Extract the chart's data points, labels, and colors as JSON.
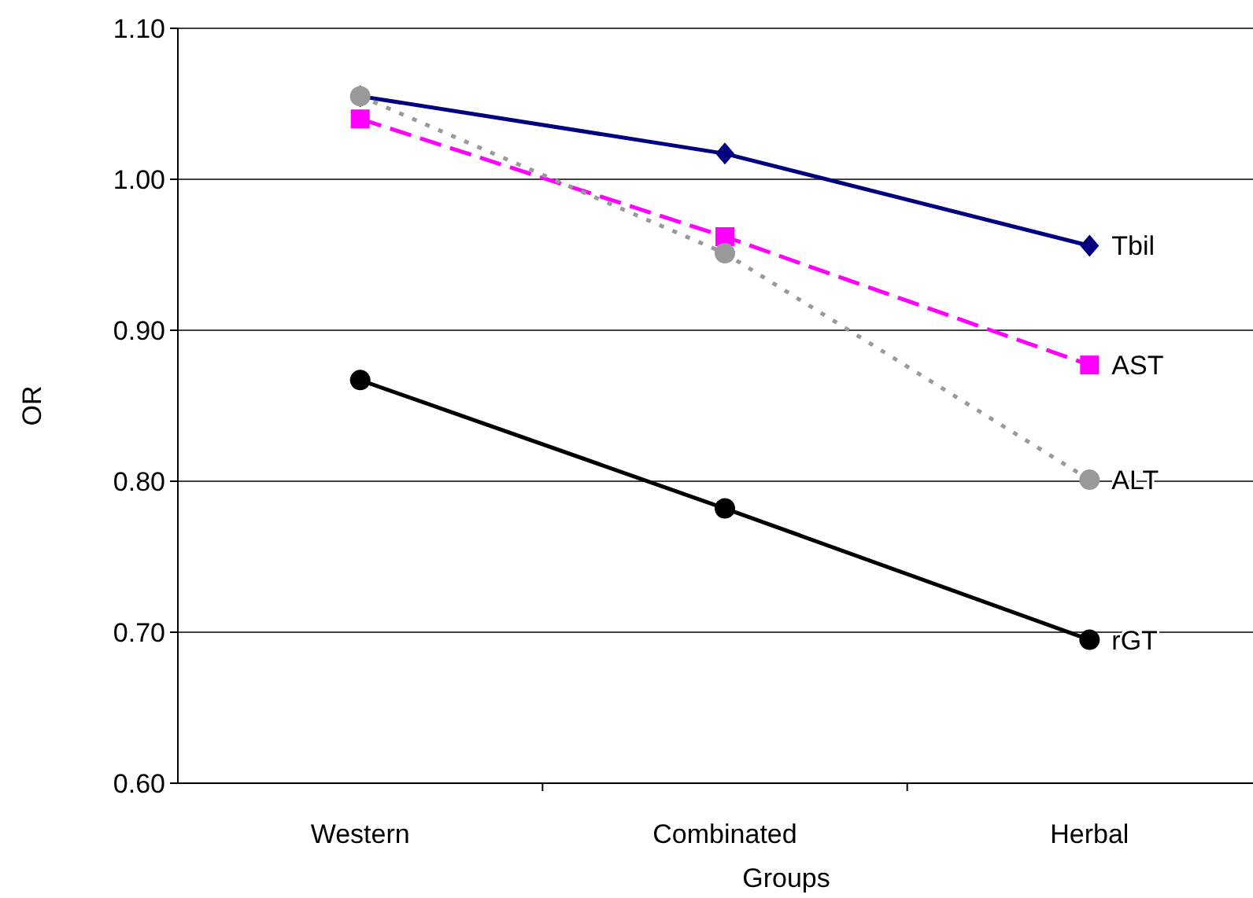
{
  "chart_data": {
    "type": "line",
    "xlabel": "Groups",
    "ylabel": "OR",
    "categories": [
      "Western",
      "Combinated",
      "Herbal"
    ],
    "ylim": [
      0.6,
      1.1
    ],
    "yticks": [
      {
        "value": 0.6,
        "label": "0.60"
      },
      {
        "value": 0.7,
        "label": "0.70"
      },
      {
        "value": 0.8,
        "label": "0.80"
      },
      {
        "value": 0.9,
        "label": "0.90"
      },
      {
        "value": 1.0,
        "label": "1.00"
      },
      {
        "value": 1.1,
        "label": "1.10"
      }
    ],
    "grid": "y",
    "series": [
      {
        "name": "Tbil",
        "color": "#000080",
        "values": [
          1.055,
          1.017,
          0.956
        ],
        "marker": "diamond",
        "line_style": "solid"
      },
      {
        "name": "AST",
        "color": "#ff00ff",
        "values": [
          1.04,
          0.962,
          0.877
        ],
        "marker": "square",
        "line_style": "dashed"
      },
      {
        "name": "ALT",
        "color": "#999999",
        "values": [
          1.055,
          0.951,
          0.801
        ],
        "marker": "circle",
        "line_style": "dotted"
      },
      {
        "name": "rGT",
        "color": "#000000",
        "values": [
          0.867,
          0.782,
          0.695
        ],
        "marker": "circle",
        "line_style": "solid"
      }
    ]
  }
}
